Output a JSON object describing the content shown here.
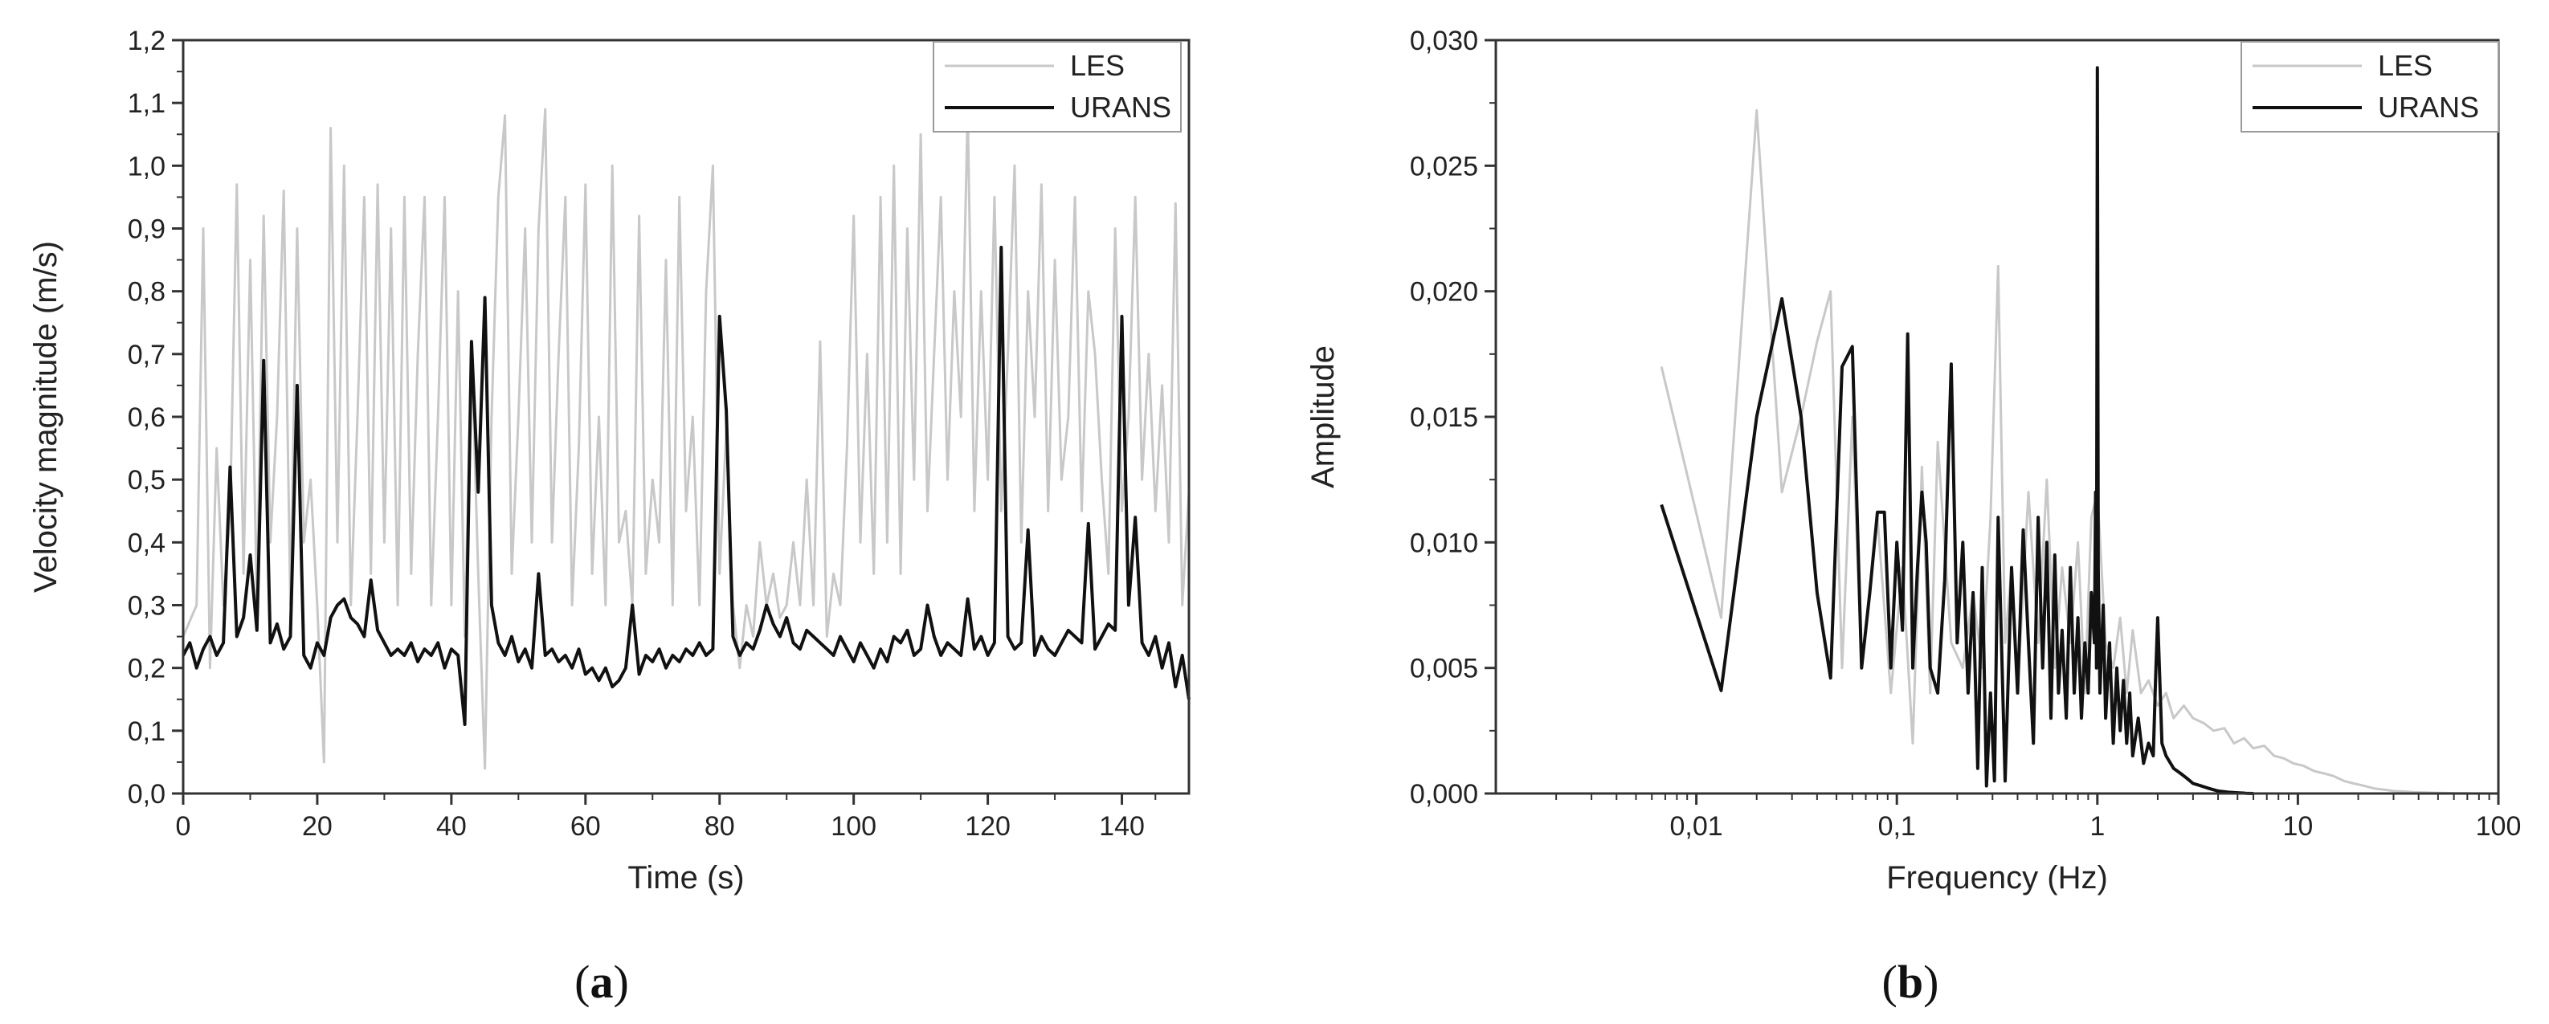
{
  "colors": {
    "les": "#c8c8c8",
    "urans": "#111111",
    "axis": "#333333"
  },
  "chart_data": [
    {
      "type": "line",
      "panel_label": {
        "open": "(",
        "letter": "a",
        "close": ")"
      },
      "xlabel": "Time (s)",
      "ylabel": "Velocity magnitude (m/s)",
      "xlim": [
        0,
        150
      ],
      "ylim": [
        0,
        1.2
      ],
      "x_ticks": [
        0,
        20,
        40,
        60,
        80,
        100,
        120,
        140
      ],
      "x_tick_labels": [
        "0",
        "20",
        "40",
        "60",
        "80",
        "100",
        "120",
        "140"
      ],
      "y_ticks": [
        0,
        0.1,
        0.2,
        0.3,
        0.4,
        0.5,
        0.6,
        0.7,
        0.8,
        0.9,
        1.0,
        1.1,
        1.2
      ],
      "y_tick_labels": [
        "0,0",
        "0,1",
        "0,2",
        "0,3",
        "0,4",
        "0,5",
        "0,6",
        "0,7",
        "0,8",
        "0,9",
        "1,0",
        "1,1",
        "1,2"
      ],
      "grid": false,
      "legend": {
        "position": "top-right",
        "entries": [
          "LES",
          "URANS"
        ]
      },
      "series": [
        {
          "name": "LES",
          "x": [
            0,
            2,
            3,
            4,
            5,
            6,
            7,
            8,
            9,
            10,
            11,
            12,
            13,
            14,
            15,
            16,
            17,
            18,
            19,
            20,
            21,
            22,
            23,
            24,
            25,
            26,
            27,
            28,
            29,
            30,
            31,
            32,
            33,
            34,
            35,
            36,
            37,
            38,
            39,
            40,
            41,
            42,
            43,
            44,
            45,
            46,
            47,
            48,
            49,
            50,
            51,
            52,
            53,
            54,
            55,
            56,
            57,
            58,
            59,
            60,
            61,
            62,
            63,
            64,
            65,
            66,
            67,
            68,
            69,
            70,
            71,
            72,
            73,
            74,
            75,
            76,
            77,
            78,
            79,
            80,
            81,
            82,
            83,
            84,
            85,
            86,
            87,
            88,
            89,
            90,
            91,
            92,
            93,
            94,
            95,
            96,
            97,
            98,
            99,
            100,
            101,
            102,
            103,
            104,
            105,
            106,
            107,
            108,
            109,
            110,
            111,
            112,
            113,
            114,
            115,
            116,
            117,
            118,
            119,
            120,
            121,
            122,
            123,
            124,
            125,
            126,
            127,
            128,
            129,
            130,
            131,
            132,
            133,
            134,
            135,
            136,
            137,
            138,
            139,
            140,
            141,
            142,
            143,
            144,
            145,
            146,
            147,
            148,
            149,
            150
          ],
          "values": [
            0.25,
            0.3,
            0.9,
            0.2,
            0.55,
            0.3,
            0.45,
            0.97,
            0.35,
            0.85,
            0.3,
            0.92,
            0.4,
            0.6,
            0.96,
            0.3,
            0.9,
            0.4,
            0.5,
            0.3,
            0.05,
            1.06,
            0.4,
            1.0,
            0.3,
            0.6,
            0.95,
            0.35,
            0.97,
            0.4,
            0.9,
            0.3,
            0.95,
            0.35,
            0.7,
            0.95,
            0.3,
            0.6,
            0.95,
            0.3,
            0.8,
            0.25,
            0.72,
            0.35,
            0.04,
            0.6,
            0.95,
            1.08,
            0.35,
            0.6,
            0.9,
            0.4,
            0.9,
            1.09,
            0.4,
            0.7,
            0.95,
            0.3,
            0.55,
            0.97,
            0.35,
            0.6,
            0.3,
            1.0,
            0.4,
            0.45,
            0.3,
            0.92,
            0.35,
            0.5,
            0.4,
            0.85,
            0.3,
            0.95,
            0.45,
            0.6,
            0.3,
            0.8,
            1.0,
            0.35,
            0.58,
            0.3,
            0.2,
            0.3,
            0.25,
            0.4,
            0.3,
            0.35,
            0.28,
            0.3,
            0.4,
            0.3,
            0.5,
            0.3,
            0.72,
            0.25,
            0.35,
            0.3,
            0.55,
            0.92,
            0.4,
            0.7,
            0.35,
            0.95,
            0.4,
            1.0,
            0.35,
            0.9,
            0.5,
            1.05,
            0.45,
            0.7,
            0.95,
            0.5,
            0.8,
            0.6,
            1.09,
            0.45,
            0.8,
            0.5,
            0.95,
            0.45,
            0.7,
            1.0,
            0.4,
            0.8,
            0.6,
            0.97,
            0.45,
            0.85,
            0.5,
            0.6,
            0.95,
            0.45,
            0.8,
            0.7,
            0.5,
            0.35,
            0.9,
            0.45,
            0.6,
            0.95,
            0.5,
            0.7,
            0.45,
            0.65,
            0.4,
            0.94,
            0.3,
            0.48
          ]
        },
        {
          "name": "URANS",
          "x": [
            0,
            1,
            2,
            3,
            4,
            5,
            6,
            7,
            8,
            9,
            10,
            11,
            12,
            13,
            14,
            15,
            16,
            17,
            18,
            19,
            20,
            21,
            22,
            23,
            24,
            25,
            26,
            27,
            28,
            29,
            30,
            31,
            32,
            33,
            34,
            35,
            36,
            37,
            38,
            39,
            40,
            41,
            42,
            43,
            44,
            45,
            46,
            47,
            48,
            49,
            50,
            51,
            52,
            53,
            54,
            55,
            56,
            57,
            58,
            59,
            60,
            61,
            62,
            63,
            64,
            65,
            66,
            67,
            68,
            69,
            70,
            71,
            72,
            73,
            74,
            75,
            76,
            77,
            78,
            79,
            80,
            81,
            82,
            83,
            84,
            85,
            86,
            87,
            88,
            89,
            90,
            91,
            92,
            93,
            94,
            95,
            96,
            97,
            98,
            99,
            100,
            101,
            102,
            103,
            104,
            105,
            106,
            107,
            108,
            109,
            110,
            111,
            112,
            113,
            114,
            115,
            116,
            117,
            118,
            119,
            120,
            121,
            122,
            123,
            124,
            125,
            126,
            127,
            128,
            129,
            130,
            131,
            132,
            133,
            134,
            135,
            136,
            137,
            138,
            139,
            140,
            141,
            142,
            143,
            144,
            145,
            146,
            147,
            148,
            149,
            150
          ],
          "values": [
            0.22,
            0.24,
            0.2,
            0.23,
            0.25,
            0.22,
            0.24,
            0.52,
            0.25,
            0.28,
            0.38,
            0.26,
            0.69,
            0.24,
            0.27,
            0.23,
            0.25,
            0.65,
            0.22,
            0.2,
            0.24,
            0.22,
            0.28,
            0.3,
            0.31,
            0.28,
            0.27,
            0.25,
            0.34,
            0.26,
            0.24,
            0.22,
            0.23,
            0.22,
            0.24,
            0.21,
            0.23,
            0.22,
            0.24,
            0.2,
            0.23,
            0.22,
            0.11,
            0.72,
            0.48,
            0.79,
            0.3,
            0.24,
            0.22,
            0.25,
            0.21,
            0.23,
            0.2,
            0.35,
            0.22,
            0.23,
            0.21,
            0.22,
            0.2,
            0.23,
            0.19,
            0.2,
            0.18,
            0.2,
            0.17,
            0.18,
            0.2,
            0.3,
            0.19,
            0.22,
            0.21,
            0.23,
            0.2,
            0.22,
            0.21,
            0.23,
            0.22,
            0.24,
            0.22,
            0.23,
            0.76,
            0.61,
            0.25,
            0.22,
            0.24,
            0.23,
            0.26,
            0.3,
            0.27,
            0.25,
            0.28,
            0.24,
            0.23,
            0.26,
            0.25,
            0.24,
            0.23,
            0.22,
            0.25,
            0.23,
            0.21,
            0.24,
            0.22,
            0.2,
            0.23,
            0.21,
            0.25,
            0.24,
            0.26,
            0.22,
            0.23,
            0.3,
            0.25,
            0.22,
            0.24,
            0.23,
            0.22,
            0.31,
            0.23,
            0.25,
            0.22,
            0.24,
            0.87,
            0.25,
            0.23,
            0.24,
            0.42,
            0.22,
            0.25,
            0.23,
            0.22,
            0.24,
            0.26,
            0.25,
            0.24,
            0.43,
            0.23,
            0.25,
            0.27,
            0.26,
            0.76,
            0.3,
            0.44,
            0.24,
            0.22,
            0.25,
            0.2,
            0.24,
            0.17,
            0.22,
            0.15
          ]
        }
      ]
    },
    {
      "type": "line",
      "panel_label": {
        "open": "(",
        "letter": "b",
        "close": ")"
      },
      "xlabel": "Frequency (Hz)",
      "ylabel": "Amplitude",
      "x_scale": "log",
      "xlim": [
        0.001,
        100
      ],
      "ylim": [
        0,
        0.03
      ],
      "x_ticks": [
        0.01,
        0.1,
        1,
        10,
        100
      ],
      "x_tick_labels": [
        "0,01",
        "0,1",
        "1",
        "10",
        "100"
      ],
      "y_ticks": [
        0,
        0.005,
        0.01,
        0.015,
        0.02,
        0.025,
        0.03
      ],
      "y_tick_labels": [
        "0,000",
        "0,005",
        "0,010",
        "0,015",
        "0,020",
        "0,025",
        "0,030"
      ],
      "grid": false,
      "legend": {
        "position": "top-right",
        "entries": [
          "LES",
          "URANS"
        ]
      },
      "series": [
        {
          "name": "LES",
          "x": [
            0.0067,
            0.0133,
            0.02,
            0.0267,
            0.0333,
            0.04,
            0.0467,
            0.0533,
            0.06,
            0.0667,
            0.08,
            0.0933,
            0.1067,
            0.12,
            0.1333,
            0.1467,
            0.16,
            0.1867,
            0.2133,
            0.24,
            0.2667,
            0.2933,
            0.32,
            0.3467,
            0.3733,
            0.4,
            0.4533,
            0.5067,
            0.56,
            0.6133,
            0.6667,
            0.7333,
            0.8,
            0.8667,
            0.9333,
            1.0,
            1.1,
            1.2,
            1.3,
            1.4,
            1.5,
            1.65,
            1.8,
            2.0,
            2.2,
            2.4,
            2.7,
            3.0,
            3.4,
            3.8,
            4.3,
            4.8,
            5.4,
            6.0,
            6.8,
            7.6,
            8.5,
            9.5,
            10.7,
            12.0,
            13.5,
            15.0,
            17.0,
            19.0,
            21.5,
            24.0,
            27.0,
            30.0,
            34.0,
            38.0,
            43.0,
            48.0,
            54.0,
            60.0,
            68.0,
            76.0,
            85.0,
            95.0,
            100.0
          ],
          "values": [
            0.017,
            0.007,
            0.0272,
            0.012,
            0.015,
            0.018,
            0.02,
            0.005,
            0.015,
            0.005,
            0.011,
            0.004,
            0.009,
            0.002,
            0.013,
            0.004,
            0.014,
            0.006,
            0.005,
            0.008,
            0.005,
            0.011,
            0.021,
            0.006,
            0.009,
            0.004,
            0.012,
            0.006,
            0.0125,
            0.005,
            0.009,
            0.006,
            0.01,
            0.004,
            0.011,
            0.012,
            0.006,
            0.005,
            0.007,
            0.004,
            0.0065,
            0.004,
            0.0045,
            0.0035,
            0.004,
            0.003,
            0.0035,
            0.003,
            0.0028,
            0.0025,
            0.0026,
            0.002,
            0.0022,
            0.0018,
            0.0019,
            0.0015,
            0.0014,
            0.0012,
            0.0011,
            0.0009,
            0.0008,
            0.0007,
            0.0005,
            0.0004,
            0.0003,
            0.0002,
            0.00015,
            0.0001,
            8e-05,
            5e-05,
            4e-05,
            3e-05,
            2e-05,
            1e-05,
            1e-05,
            0.0,
            0.0,
            0.0,
            0.0
          ]
        },
        {
          "name": "URANS",
          "x": [
            0.0067,
            0.0133,
            0.02,
            0.0267,
            0.0333,
            0.04,
            0.0467,
            0.0533,
            0.06,
            0.0667,
            0.0733,
            0.08,
            0.0867,
            0.0933,
            0.1,
            0.1067,
            0.1133,
            0.12,
            0.1267,
            0.1333,
            0.14,
            0.1467,
            0.16,
            0.1733,
            0.1867,
            0.2,
            0.2133,
            0.2267,
            0.24,
            0.2533,
            0.2667,
            0.28,
            0.2933,
            0.3067,
            0.32,
            0.3467,
            0.3733,
            0.4,
            0.4267,
            0.4533,
            0.48,
            0.5067,
            0.5333,
            0.56,
            0.5867,
            0.6133,
            0.64,
            0.6667,
            0.7,
            0.7333,
            0.7667,
            0.8,
            0.8333,
            0.8667,
            0.9,
            0.9333,
            0.9667,
            0.98,
            0.99,
            1.0,
            1.01,
            1.03,
            1.07,
            1.1,
            1.15,
            1.2,
            1.25,
            1.3,
            1.35,
            1.4,
            1.45,
            1.5,
            1.6,
            1.7,
            1.8,
            1.9,
            1.95,
            2.0,
            2.1,
            2.2,
            2.4,
            2.6,
            2.8,
            3.0,
            3.3,
            3.6,
            4.0,
            4.5,
            5.0,
            5.5,
            6.0
          ],
          "values": [
            0.0115,
            0.0041,
            0.015,
            0.0197,
            0.015,
            0.008,
            0.0046,
            0.017,
            0.0178,
            0.005,
            0.008,
            0.0112,
            0.0112,
            0.005,
            0.01,
            0.0065,
            0.0183,
            0.005,
            0.009,
            0.012,
            0.01,
            0.005,
            0.004,
            0.0085,
            0.0171,
            0.006,
            0.01,
            0.004,
            0.008,
            0.001,
            0.009,
            0.0003,
            0.004,
            0.0005,
            0.011,
            0.0005,
            0.009,
            0.004,
            0.0105,
            0.006,
            0.002,
            0.011,
            0.005,
            0.01,
            0.003,
            0.0095,
            0.004,
            0.0065,
            0.003,
            0.009,
            0.004,
            0.007,
            0.003,
            0.006,
            0.004,
            0.008,
            0.006,
            0.012,
            0.005,
            0.0289,
            0.009,
            0.004,
            0.0075,
            0.003,
            0.006,
            0.002,
            0.005,
            0.0025,
            0.0045,
            0.002,
            0.004,
            0.0015,
            0.003,
            0.0012,
            0.002,
            0.0015,
            0.0045,
            0.007,
            0.002,
            0.0015,
            0.001,
            0.0008,
            0.0006,
            0.0004,
            0.0003,
            0.0002,
            0.0001,
            5e-05,
            3e-05,
            1e-05,
            0.0
          ]
        }
      ]
    }
  ]
}
